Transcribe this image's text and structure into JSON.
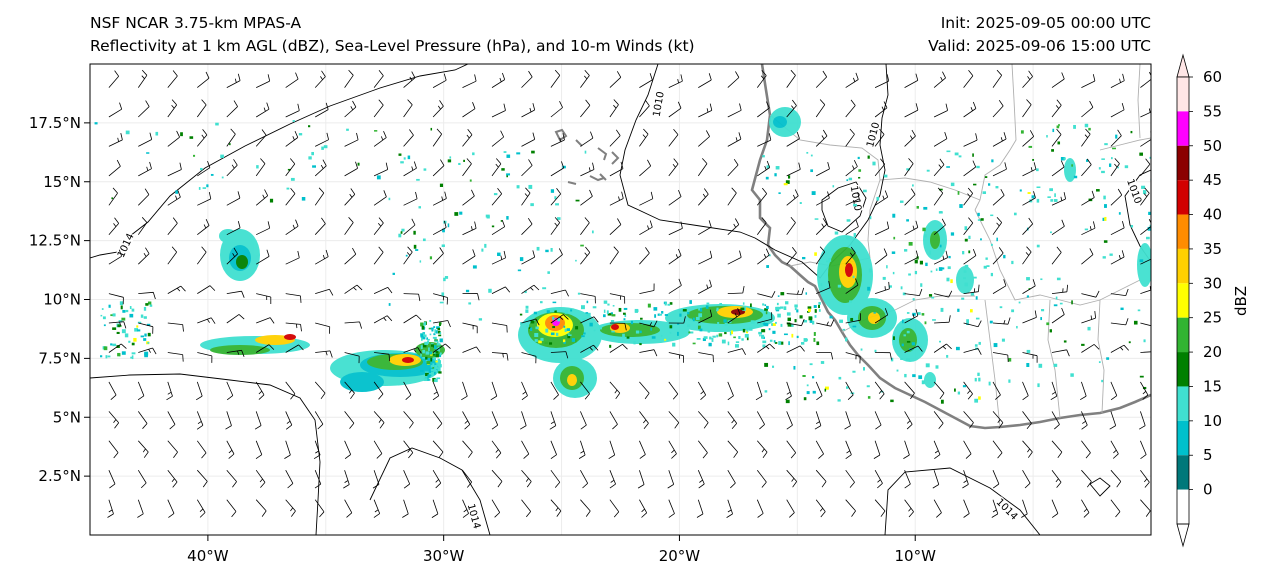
{
  "header": {
    "model": "NSF NCAR 3.75-km MPAS-A",
    "fields": "Reflectivity at 1 km AGL (dBZ), Sea-Level Pressure (hPa), and 10-m Winds (kt)",
    "init": "Init: 2025-09-05 00:00 UTC",
    "valid": "Valid: 2025-09-06 15:00 UTC"
  },
  "map": {
    "lon_range": [
      -45,
      0
    ],
    "lat_range": [
      0,
      20
    ],
    "lon_ticks": [
      {
        "v": -40,
        "label": "40°W"
      },
      {
        "v": -30,
        "label": "30°W"
      },
      {
        "v": -20,
        "label": "20°W"
      },
      {
        "v": -10,
        "label": "10°W"
      }
    ],
    "lat_ticks": [
      {
        "v": 2.5,
        "label": "2.5°N"
      },
      {
        "v": 5,
        "label": "5°N"
      },
      {
        "v": 7.5,
        "label": "7.5°N"
      },
      {
        "v": 10,
        "label": "10°N"
      },
      {
        "v": 12.5,
        "label": "12.5°N"
      },
      {
        "v": 15,
        "label": "15°N"
      },
      {
        "v": 17.5,
        "label": "17.5°N"
      }
    ],
    "isobar_labels": [
      {
        "text": "1010",
        "lon": -20.9,
        "lat": 18.3,
        "rot": -80
      },
      {
        "text": "1010",
        "lon": -11.8,
        "lat": 17.0,
        "rot": -75
      },
      {
        "text": "1010",
        "lon": -12.5,
        "lat": 14.3,
        "rot": 80
      },
      {
        "text": "1014",
        "lon": -43.5,
        "lat": 12.3,
        "rot": -65
      },
      {
        "text": "1010",
        "lon": -0.7,
        "lat": 14.6,
        "rot": 70
      },
      {
        "text": "1014",
        "lon": -28.7,
        "lat": 0.8,
        "rot": 75
      },
      {
        "text": "1014",
        "lon": -6.1,
        "lat": 1.1,
        "rot": 45
      }
    ]
  },
  "colorbar": {
    "label": "dBZ",
    "ticks": [
      "0",
      "5",
      "10",
      "15",
      "20",
      "25",
      "30",
      "35",
      "40",
      "45",
      "50",
      "55",
      "60"
    ],
    "colors": [
      "#00787a",
      "#00c0cc",
      "#40e0d0",
      "#008000",
      "#32b432",
      "#ffff00",
      "#ffd000",
      "#ff8c00",
      "#d20000",
      "#8b0000",
      "#ff00ff",
      "#ffe6e6"
    ]
  }
}
